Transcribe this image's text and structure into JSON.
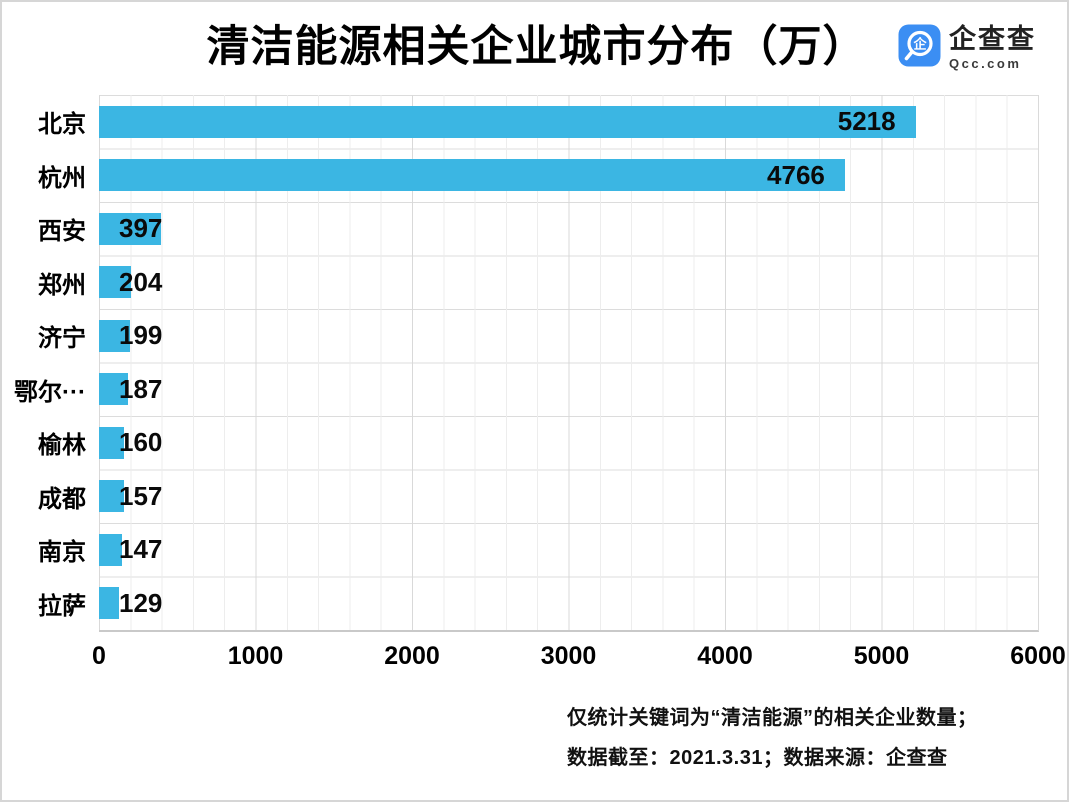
{
  "header": {
    "title": "清洁能源相关企业城市分布（万）",
    "logo": {
      "name": "企查查",
      "domain": "Qcc.com",
      "brand_color": "#3B8EF3"
    }
  },
  "chart_data": {
    "type": "bar",
    "orientation": "horizontal",
    "title": "清洁能源相关企业城市分布（万）",
    "categories": [
      "北京",
      "杭州",
      "西安",
      "郑州",
      "济宁",
      "鄂尔···",
      "榆林",
      "成都",
      "南京",
      "拉萨"
    ],
    "values": [
      5218,
      4766,
      397,
      204,
      199,
      187,
      160,
      157,
      147,
      129
    ],
    "xlim": [
      0,
      6000
    ],
    "x_tick_labels": [
      "0",
      "1000",
      "2000",
      "3000",
      "4000",
      "5000",
      "6000"
    ],
    "grid": true,
    "legend": false,
    "bar_color": "#3BB6E3",
    "value_labels": true
  },
  "footer": {
    "line1": "仅统计关键词为“清洁能源”的相关企业数量；",
    "line2": "数据截至：2021.3.31；数据来源：企查查"
  }
}
